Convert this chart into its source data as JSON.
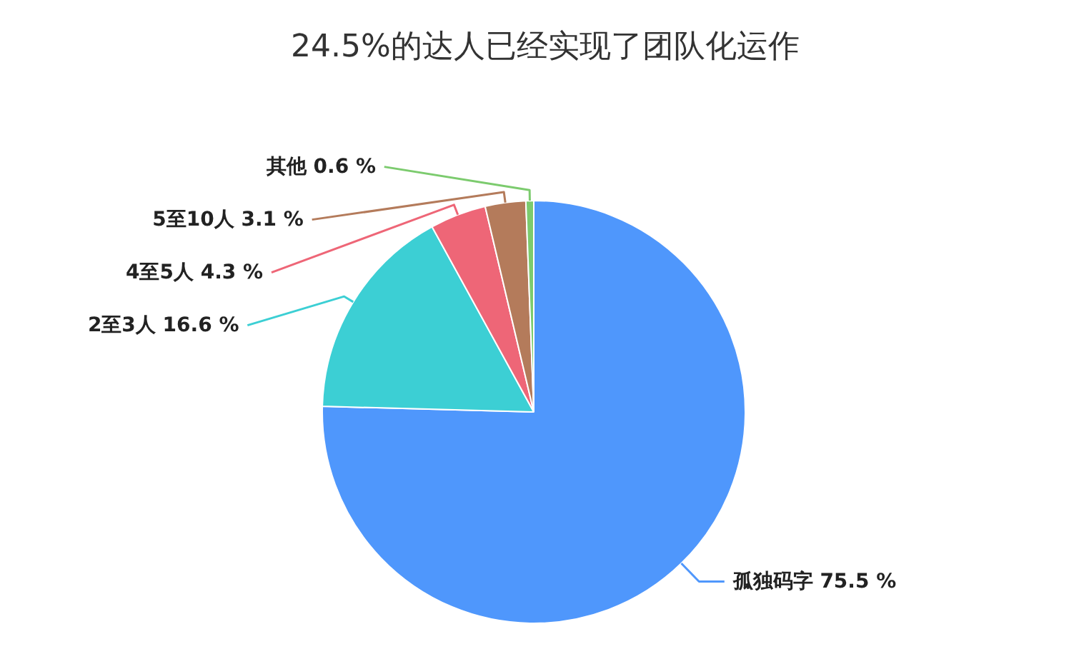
{
  "chart_data": {
    "type": "pie",
    "title": "24.5%的达人已经实现了团队化运作",
    "categories": [
      "孤独码字",
      "2至3人",
      "4至5人",
      "5至10人",
      "其他"
    ],
    "values": [
      75.5,
      16.6,
      4.3,
      3.1,
      0.6
    ],
    "value_labels": [
      "75.5 %",
      "16.6 %",
      "4.3 %",
      "3.1 %",
      "0.6 %"
    ],
    "colors": [
      "#4f97fc",
      "#3ccfd4",
      "#ee6677",
      "#b47b5b",
      "#7ccb6e"
    ]
  }
}
